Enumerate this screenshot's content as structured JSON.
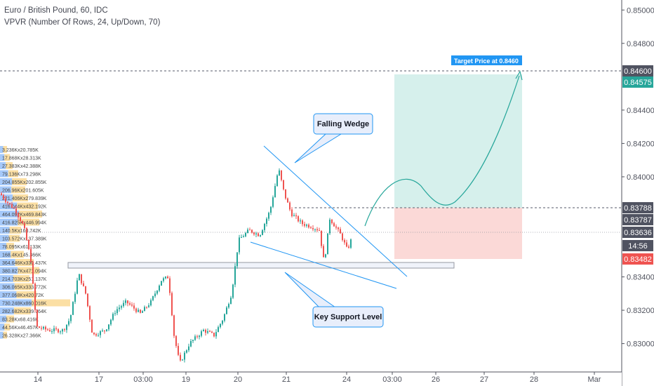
{
  "header": {
    "title": "Euro / British Pound, 60, IDC",
    "indicator": "VPVR (Number Of Rows, 24, Up/Down, 70)"
  },
  "colors": {
    "up": "#26a69a",
    "down": "#ef5350",
    "vp_up": "#5b9cf6",
    "vp_down": "#f7c55a",
    "target_zone": "#d6f0ec",
    "stop_zone": "#fbd9d7",
    "trendline": "#2196f3",
    "support_box": "#f0f3fa",
    "target_badge": "#2196f3",
    "price_badge": "#26a69a",
    "stop_badge": "#ef5350",
    "dark_badge": "#505361"
  },
  "chart_data": {
    "type": "candlestick",
    "symbol": "EURGBP",
    "timeframe": "60",
    "y_ticks": [
      "0.85000",
      "0.84800",
      "0.84400",
      "0.84200",
      "0.84000",
      "0.83400",
      "0.83200",
      "0.83000"
    ],
    "ylim": [
      0.8283,
      0.8506
    ],
    "x_ticks": [
      "14",
      "17",
      "03:00",
      "19",
      "20",
      "21",
      "24",
      "03:00",
      "26",
      "27",
      "28",
      "Mar"
    ],
    "price_badges": [
      {
        "label": "0.84600",
        "style": "dark",
        "value": 0.846
      },
      {
        "label": "0.84575",
        "style": "up",
        "value": 0.84575
      },
      {
        "label": "0.83788",
        "style": "dark",
        "value": 0.83788
      },
      {
        "label": "0.83787",
        "style": "dark",
        "value": 0.83745
      },
      {
        "label": "0.83636",
        "style": "dark",
        "value": 0.83636
      },
      {
        "label": "14:56",
        "style": "dark",
        "value": 0.8356
      },
      {
        "label": "0.83482",
        "style": "down",
        "value": 0.83482
      }
    ],
    "volume_profile": [
      "3.236Kx20.785K",
      "17.868Kx28.313K",
      "27.383Kx42.388K",
      "79.136Kx73.298K",
      "204.855Kx202.855K",
      "206.96Kx201.605K",
      "221.406Kx279.839K",
      "416.044Kx432.192K",
      "464.092Kx469.843K",
      "416.825Kx446.994K",
      "140.5Kx160.742K",
      "103.572Kx137.389K",
      "78.095Kx61.133K",
      "168.4Kx145.366K",
      "364.646Kx330.437K",
      "380.827Kx471.094K",
      "214.703Kx251.137K",
      "306.065Kx333.772K",
      "377.068Kx420.72K",
      "730.248Kx860.016K",
      "282.682Kx339.764K",
      "83.28Kx68.416K",
      "44.56Kx46.457K",
      "26.328Kx27.366K"
    ],
    "annotations": {
      "target_label": "Target Price at 0.8460",
      "wedge_label": "Falling Wedge",
      "support_label": "Key Support Level",
      "target_price": 0.846,
      "entry_price": 0.83788,
      "stop_price": 0.83482,
      "support_level": 0.8344
    }
  }
}
